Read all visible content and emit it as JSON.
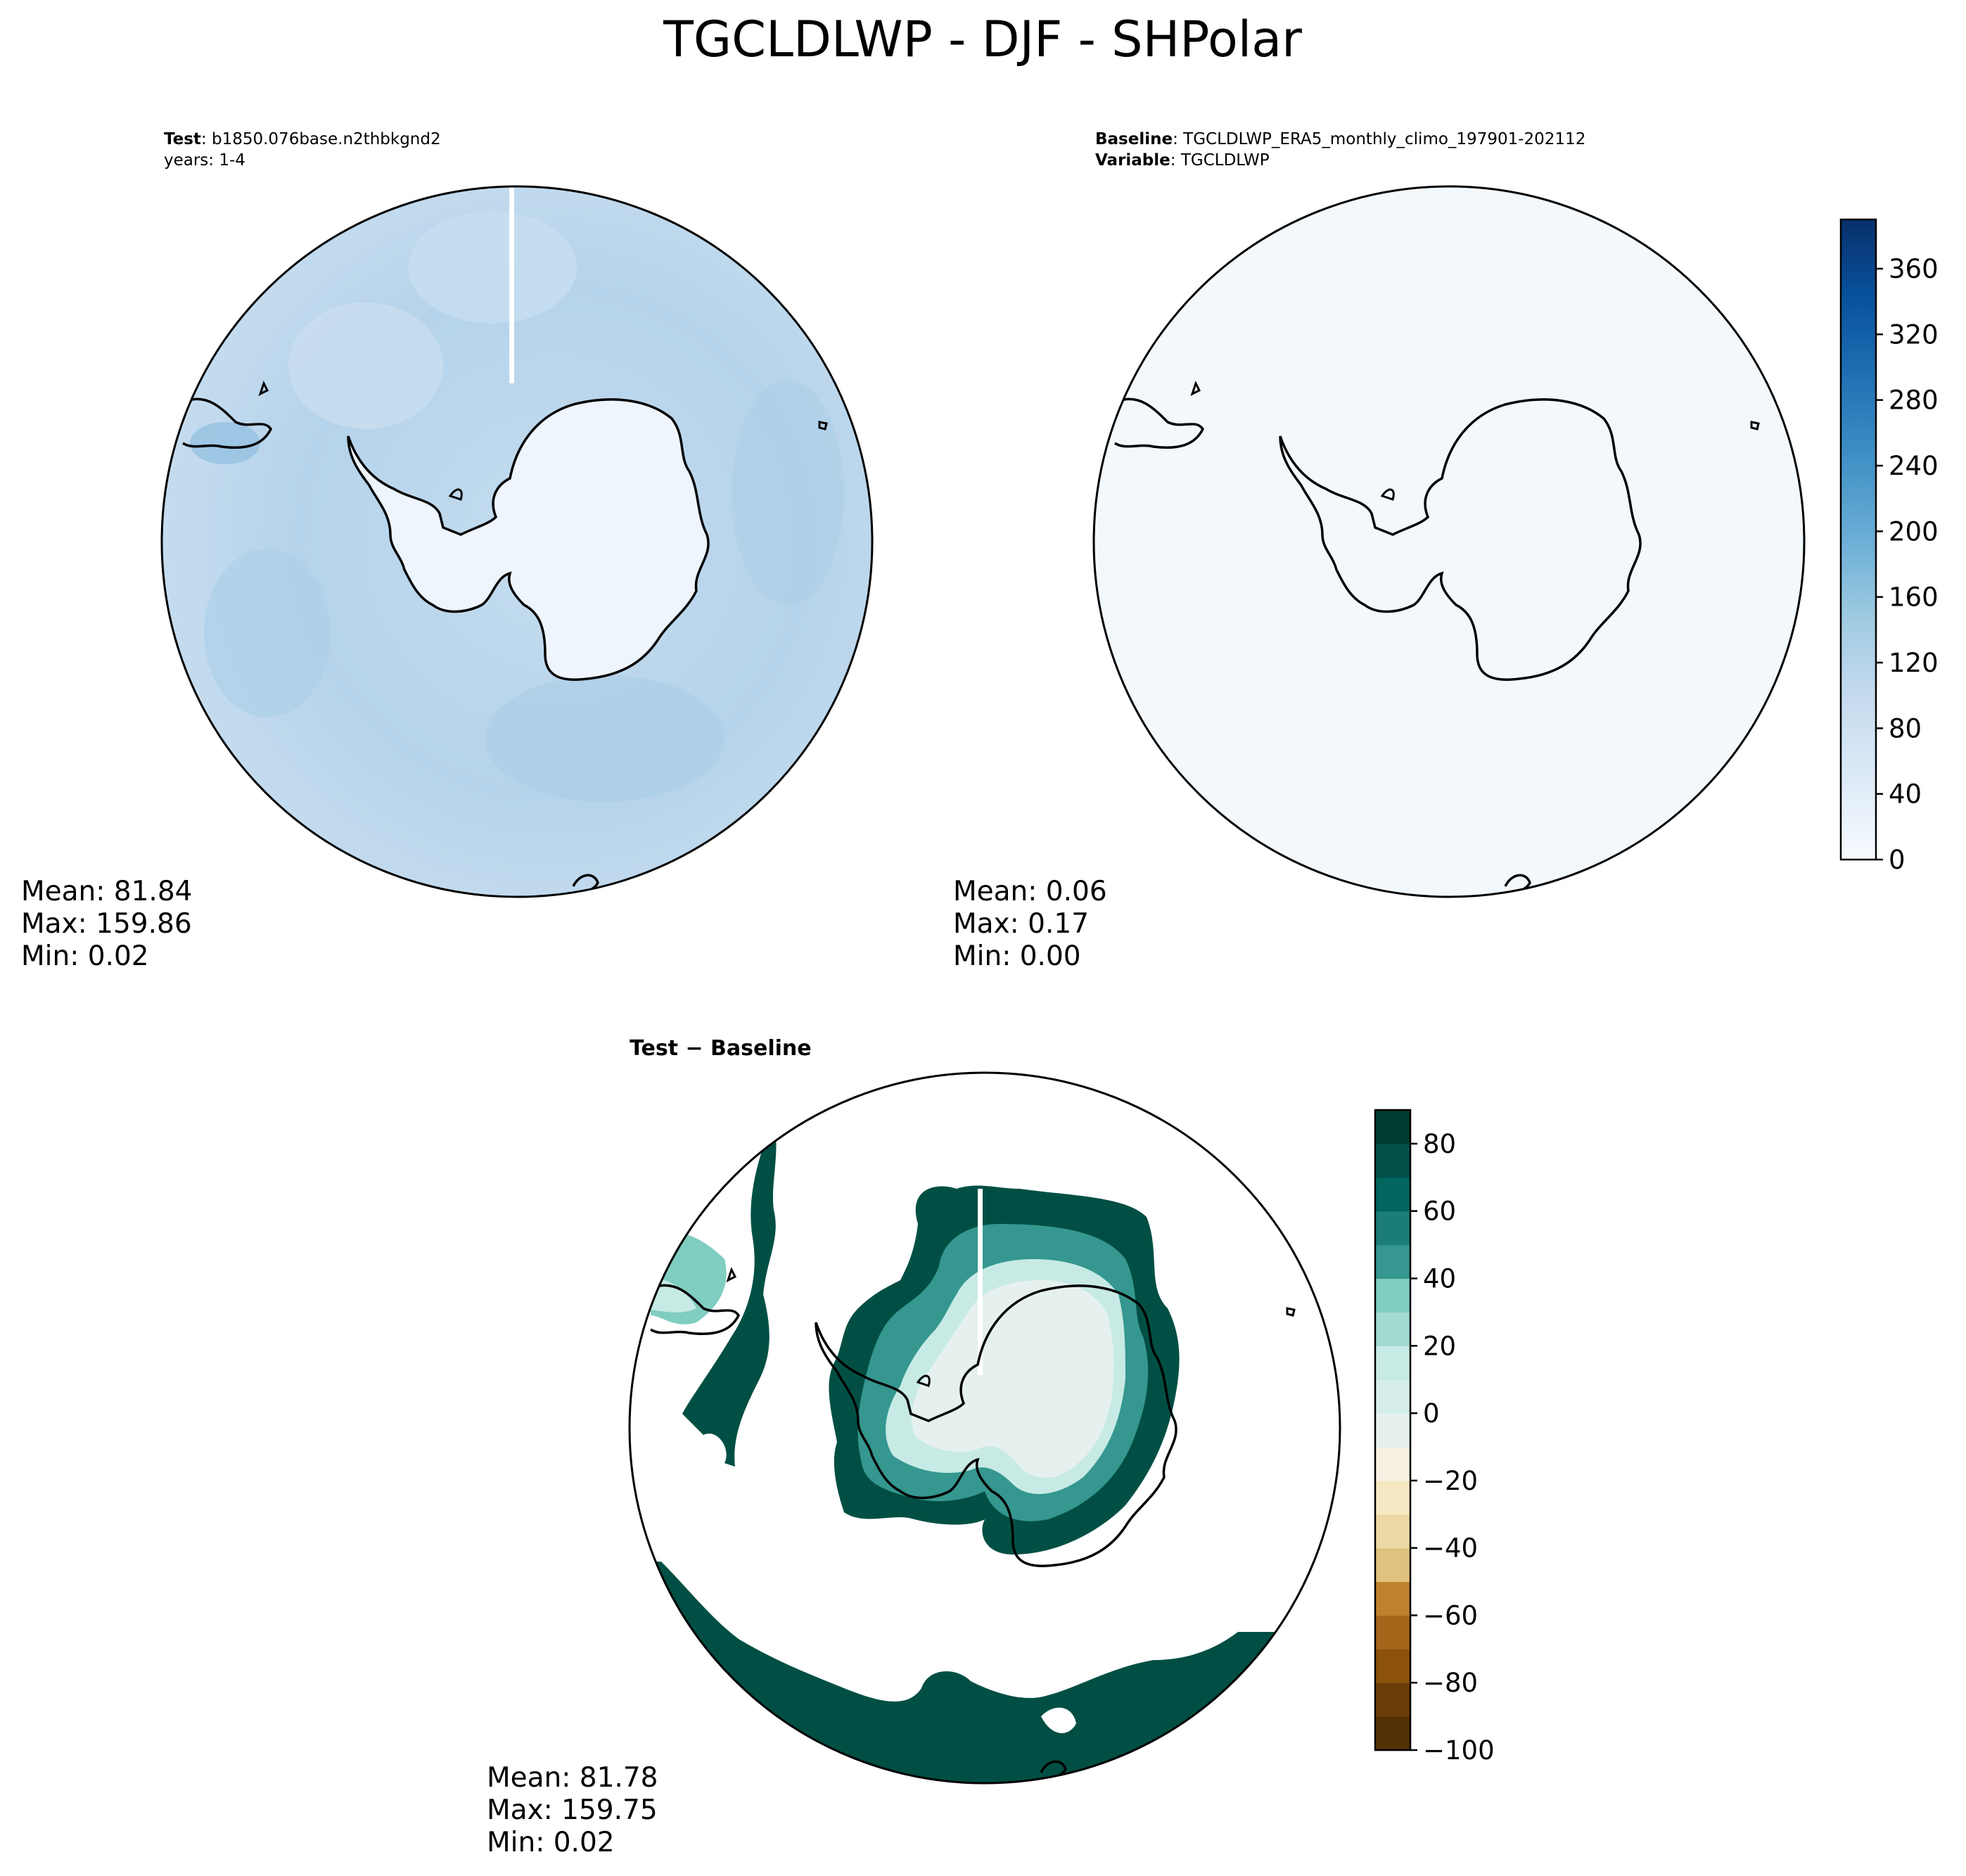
{
  "title": "TGCLDLWP - DJF - SHPolar",
  "panels": {
    "test": {
      "header_key": "Test",
      "header_value": ": b1850.076base.n2thbkgnd2",
      "subheader": "years: 1-4",
      "stats": {
        "mean": "Mean: 81.84",
        "max": "Max: 159.86",
        "min": "Min:  0.02"
      }
    },
    "baseline": {
      "header_key": "Baseline",
      "header_value": ": TGCLDLWP_ERA5_monthly_climo_197901-202112",
      "header2_key": "Variable",
      "header2_value": ": TGCLDLWP",
      "stats": {
        "mean": "Mean:  0.06",
        "max": "Max:  0.17",
        "min": "Min:  0.00"
      }
    },
    "difference": {
      "header": "Test − Baseline",
      "stats": {
        "mean": "Mean: 81.78",
        "max": "Max: 159.75",
        "min": "Min:  0.02"
      }
    }
  },
  "colorbars": {
    "field": {
      "colormap": "Blues",
      "range": [
        0,
        390
      ],
      "ticks": [
        "0",
        "40",
        "80",
        "120",
        "160",
        "200",
        "240",
        "280",
        "320",
        "360"
      ],
      "colors": [
        "#f7fbff",
        "#08306b"
      ]
    },
    "difference": {
      "colormap": "BrBG",
      "range": [
        -100,
        90
      ],
      "ticks": [
        "−100",
        "−80",
        "−60",
        "−40",
        "−20",
        "0",
        "20",
        "40",
        "60",
        "80"
      ],
      "negative_colors": [
        "#543005",
        "#8c510a",
        "#bf812d",
        "#dfc27d",
        "#f6e8c3",
        "#f5f5f5"
      ],
      "positive_colors": [
        "#f5f5f5",
        "#c7eae5",
        "#80cdc1",
        "#35978f",
        "#01665e",
        "#003c30"
      ]
    }
  }
}
